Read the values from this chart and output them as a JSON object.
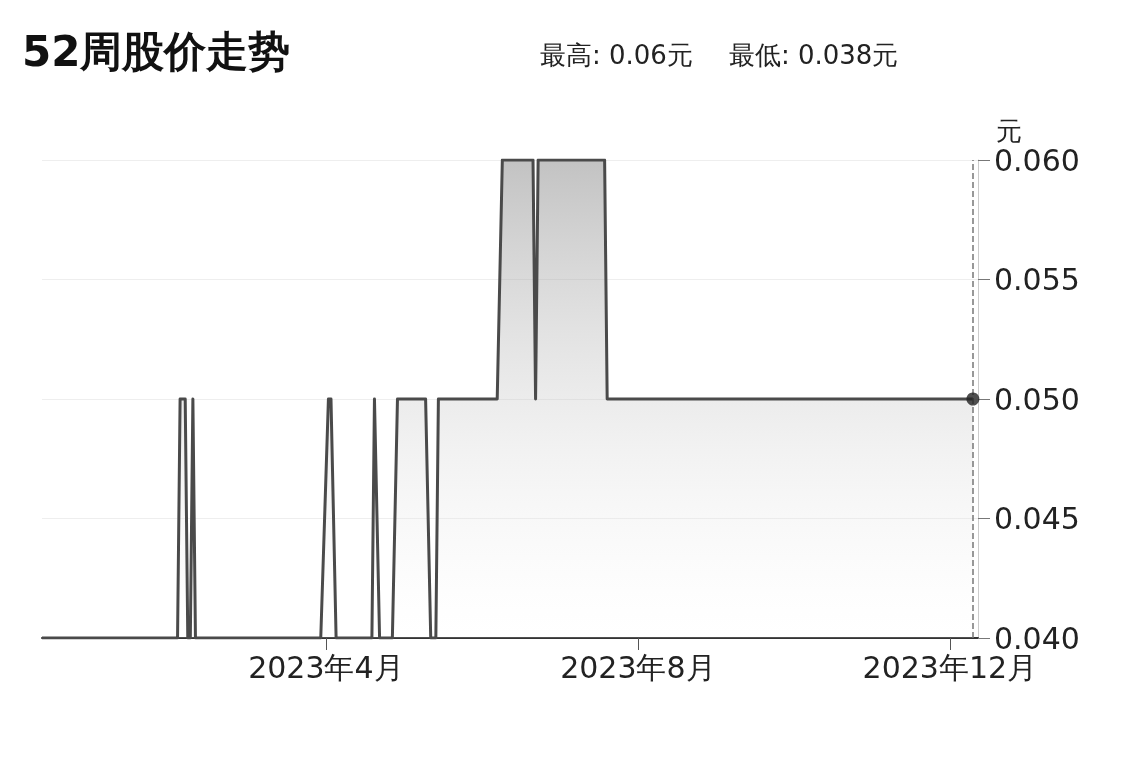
{
  "chart_data": {
    "type": "area",
    "title": "52周股价走势",
    "annotations": [
      "最高: 0.06元",
      "最低: 0.038元"
    ],
    "ylabel": "元",
    "x": [
      "2022-12-11",
      "2023-02-02",
      "2023-02-03",
      "2023-02-05",
      "2023-02-06",
      "2023-02-07",
      "2023-02-08",
      "2023-02-09",
      "2023-03-30",
      "2023-04-02",
      "2023-04-03",
      "2023-04-05",
      "2023-04-19",
      "2023-04-20",
      "2023-04-22",
      "2023-04-27",
      "2023-04-29",
      "2023-05-10",
      "2023-05-12",
      "2023-05-14",
      "2023-05-15",
      "2023-06-07",
      "2023-06-09",
      "2023-06-21",
      "2023-06-22",
      "2023-06-23",
      "2023-07-19",
      "2023-07-20",
      "2023-12-10"
    ],
    "series": [
      {
        "color": "#4a4a4a",
        "values": [
          0.04,
          0.04,
          0.05,
          0.05,
          0.04,
          0.04,
          0.05,
          0.04,
          0.04,
          0.05,
          0.05,
          0.04,
          0.04,
          0.05,
          0.04,
          0.04,
          0.05,
          0.05,
          0.04,
          0.04,
          0.05,
          0.05,
          0.06,
          0.06,
          0.05,
          0.06,
          0.06,
          0.05,
          0.05
        ]
      },
      {
        "type": "scatter",
        "color": "#222222",
        "marker": "circle",
        "x": [
          "2023-12-10"
        ],
        "values": [
          0.05
        ]
      }
    ],
    "xlim": [
      "2022-12-11",
      "2023-12-12"
    ],
    "xticks": [
      {
        "value": "2023-04-01",
        "label": "2023年4月"
      },
      {
        "value": "2023-08-01",
        "label": "2023年8月"
      },
      {
        "value": "2023-12-01",
        "label": "2023年12月"
      }
    ],
    "ylim": [
      0.04,
      0.06
    ],
    "yticks": [
      {
        "value": 0.04,
        "label": "0.040"
      },
      {
        "value": 0.045,
        "label": "0.045"
      },
      {
        "value": 0.05,
        "label": "0.050"
      },
      {
        "value": 0.055,
        "label": "0.055"
      },
      {
        "value": 0.06,
        "label": "0.060"
      }
    ],
    "ref_lines": [
      {
        "axis": "x",
        "value": "2023-12-10",
        "color": "#777777",
        "line_style": "dashed"
      }
    ],
    "grid": "y"
  }
}
